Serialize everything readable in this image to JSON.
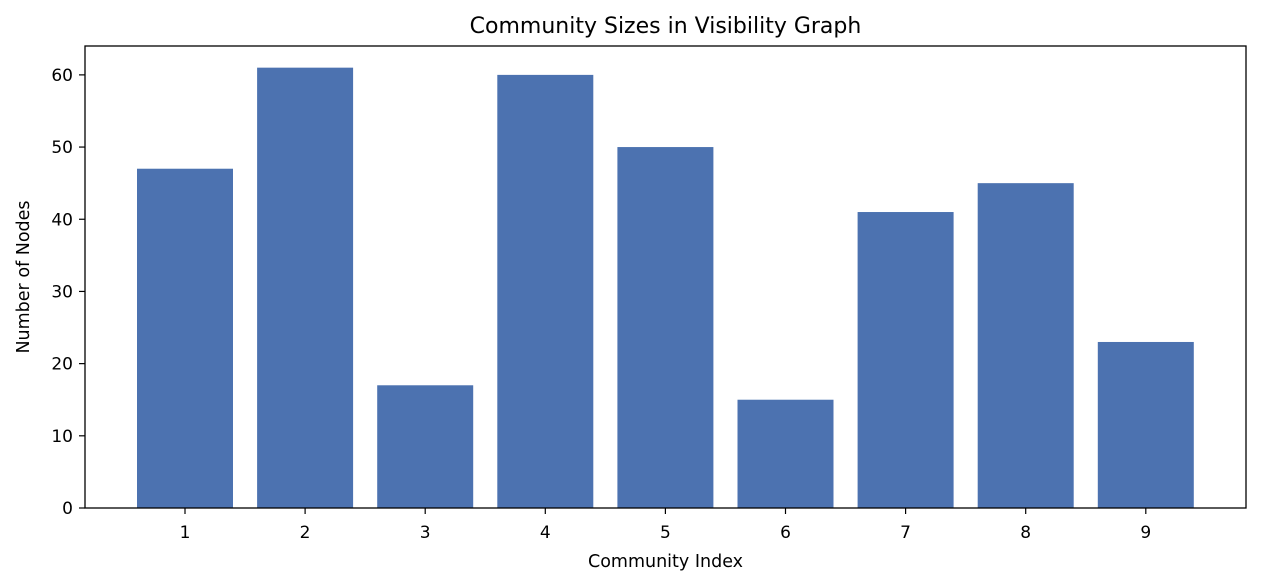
{
  "chart_data": {
    "type": "bar",
    "title": "Community Sizes in Visibility Graph",
    "xlabel": "Community Index",
    "ylabel": "Number of Nodes",
    "categories": [
      "1",
      "2",
      "3",
      "4",
      "5",
      "6",
      "7",
      "8",
      "9"
    ],
    "values": [
      47,
      61,
      17,
      60,
      50,
      15,
      41,
      45,
      23
    ],
    "ylim": [
      0,
      64
    ],
    "yticks": [
      0,
      10,
      20,
      30,
      40,
      50,
      60
    ],
    "ytick_labels": [
      "0",
      "10",
      "20",
      "30",
      "40",
      "50",
      "60"
    ],
    "grid": false,
    "legend": null,
    "bar_color": "#4c72b0"
  }
}
